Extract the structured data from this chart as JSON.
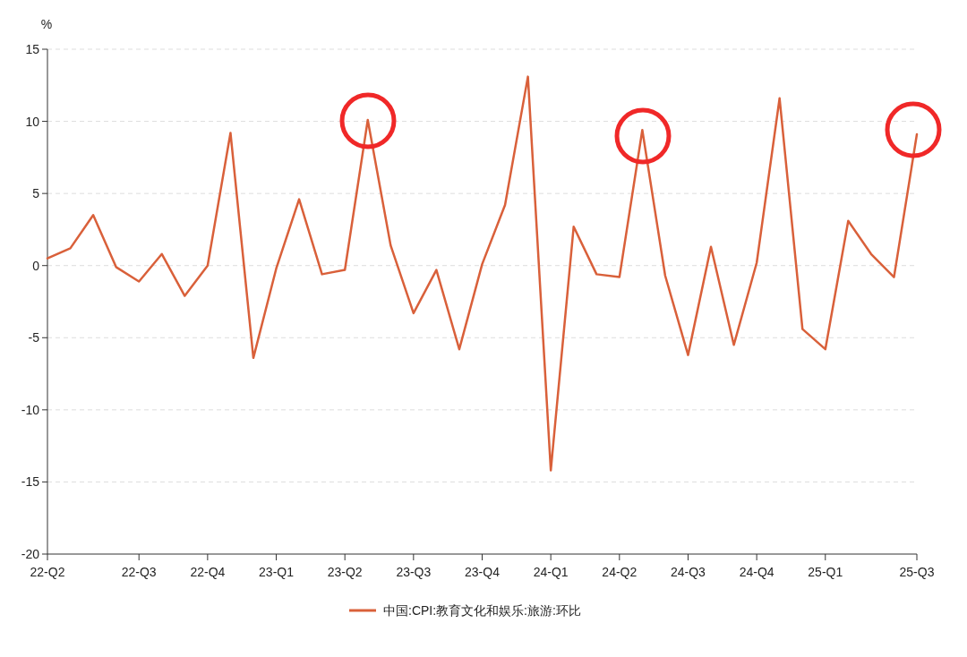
{
  "chart_data": {
    "type": "line",
    "ylabel": "%",
    "categories": [
      "22-Q2",
      null,
      null,
      null,
      "22-Q3",
      null,
      null,
      "22-Q4",
      null,
      null,
      "23-Q1",
      null,
      null,
      "23-Q2",
      null,
      null,
      "23-Q3",
      null,
      null,
      "23-Q4",
      null,
      null,
      "24-Q1",
      null,
      null,
      "24-Q2",
      null,
      null,
      "24-Q3",
      null,
      null,
      "24-Q4",
      null,
      null,
      "25-Q1",
      null,
      null,
      null,
      "25-Q3"
    ],
    "series": [
      {
        "name": "中国:CPI:教育文化和娱乐:旅游:环比",
        "color": "#d9603a",
        "values": [
          0.5,
          1.2,
          3.5,
          -0.1,
          -1.1,
          0.8,
          -2.1,
          0.0,
          9.2,
          -6.4,
          -0.2,
          4.6,
          -0.6,
          -0.3,
          10.1,
          1.4,
          -3.3,
          -0.3,
          -5.8,
          0.1,
          4.2,
          13.1,
          -14.2,
          2.7,
          -0.6,
          -0.8,
          9.4,
          -0.7,
          -6.2,
          1.3,
          -5.5,
          0.2,
          11.6,
          -4.4,
          -5.8,
          3.1,
          0.8,
          -0.8,
          9.1
        ]
      }
    ],
    "ylim": [
      -20,
      15
    ],
    "yticks": [
      -20,
      -15,
      -10,
      -5,
      0,
      5,
      10,
      15
    ],
    "grid": "y",
    "legend": "bottom",
    "marker": "none",
    "line_style": "solid"
  }
}
